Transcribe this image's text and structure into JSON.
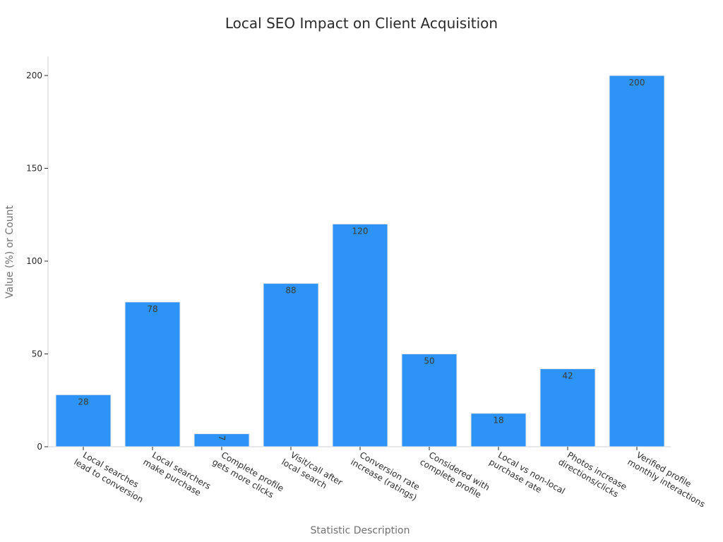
{
  "chart_data": {
    "type": "bar",
    "title": "Local SEO Impact on Client Acquisition",
    "xlabel": "Statistic Description",
    "ylabel": "Value (%) or Count",
    "ylim": [
      0,
      210
    ],
    "yticks": [
      0,
      50,
      100,
      150,
      200
    ],
    "grid": false,
    "legend": "none",
    "bar_color": "#2e93f7",
    "bar_edge_color": "#e9e9e9",
    "categories": [
      [
        "Local searches",
        "lead to conversion"
      ],
      [
        "Local searchers",
        "make purchase"
      ],
      [
        "Complete profile",
        "gets more clicks"
      ],
      [
        "Visit/call after",
        "local search"
      ],
      [
        "Conversion rate",
        "increase (ratings)"
      ],
      [
        "Considered with",
        "complete profile"
      ],
      [
        "Local vs non-local",
        "purchase rate"
      ],
      [
        "Photos increase",
        "directions/clicks"
      ],
      [
        "Verified profile",
        "monthly interactions"
      ]
    ],
    "values": [
      28,
      78,
      7,
      88,
      120,
      50,
      18,
      42,
      200
    ]
  }
}
